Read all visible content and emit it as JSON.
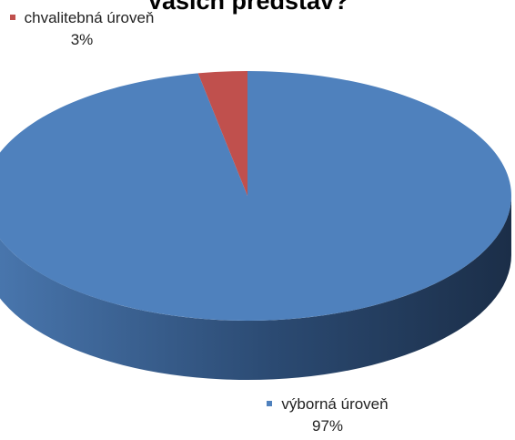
{
  "chart_data": {
    "type": "pie",
    "title": "Vašich představ?",
    "categories": [
      "výborná úroveň",
      "chvalitebná úroveň"
    ],
    "values": [
      97,
      3
    ],
    "value_labels": [
      "97%",
      "3%"
    ],
    "colors": [
      "#4f81bd",
      "#c0504d"
    ],
    "three_d": true
  }
}
